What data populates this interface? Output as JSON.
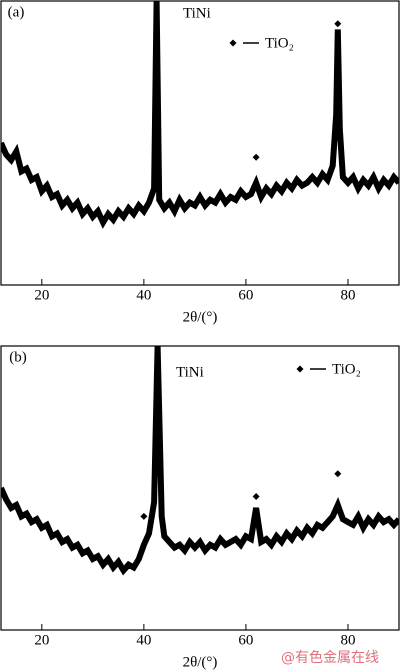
{
  "chart_data": [
    {
      "type": "line",
      "title": "(a)",
      "annotation": "TiNi",
      "legend_label": "TiO₂",
      "x_label": "2θ/(°)",
      "xlim": [
        12,
        90
      ],
      "ylim": [
        0,
        100
      ],
      "xticks": [
        20,
        40,
        60,
        80
      ],
      "series": [
        {
          "color": "#000000",
          "x": [
            12,
            13,
            14,
            15,
            16,
            17,
            18,
            19,
            20,
            21,
            22,
            23,
            24,
            25,
            26,
            27,
            28,
            29,
            30,
            31,
            32,
            33,
            34,
            35,
            36,
            37,
            38,
            39,
            40,
            41,
            42,
            42.5,
            43,
            44,
            45,
            46,
            47,
            48,
            49,
            50,
            51,
            52,
            53,
            54,
            55,
            56,
            57,
            58,
            59,
            60,
            61,
            62,
            63,
            64,
            65,
            66,
            67,
            68,
            69,
            70,
            71,
            72,
            73,
            74,
            75,
            76,
            77,
            77.7,
            78,
            78.4,
            79,
            80,
            81,
            82,
            83,
            84,
            85,
            86,
            87,
            88,
            89,
            90
          ],
          "values": [
            50,
            46,
            44,
            47,
            40,
            41,
            37,
            38,
            33,
            35,
            31,
            32,
            28,
            30,
            27,
            29,
            25,
            27,
            24,
            26,
            22,
            25,
            23,
            26,
            24,
            27,
            25,
            28,
            26,
            29,
            34,
            100,
            30,
            27,
            29,
            26,
            30,
            27,
            29,
            28,
            31,
            28,
            30,
            29,
            32,
            29,
            31,
            30,
            33,
            31,
            32,
            36,
            31,
            34,
            32,
            35,
            33,
            36,
            34,
            37,
            35,
            36,
            38,
            36,
            39,
            37,
            42,
            60,
            90,
            55,
            38,
            36,
            38,
            34,
            37,
            35,
            38,
            34,
            37,
            35,
            38,
            36
          ]
        }
      ],
      "peak_markers": [
        {
          "x": 62,
          "y": 45
        },
        {
          "x": 78,
          "y": 92
        }
      ]
    },
    {
      "type": "line",
      "title": "(b)",
      "annotation": "TiNi",
      "legend_label": "TiO₂",
      "x_label": "2θ/(°)",
      "xlim": [
        12,
        90
      ],
      "ylim": [
        0,
        100
      ],
      "xticks": [
        20,
        40,
        60,
        80
      ],
      "series": [
        {
          "color": "#000000",
          "x": [
            12,
            13,
            14,
            15,
            16,
            17,
            18,
            19,
            20,
            21,
            22,
            23,
            24,
            25,
            26,
            27,
            28,
            29,
            30,
            31,
            32,
            33,
            34,
            35,
            36,
            37,
            38,
            39,
            40,
            41,
            42,
            42.7,
            43.5,
            44,
            45,
            46,
            47,
            48,
            49,
            50,
            51,
            52,
            53,
            54,
            55,
            56,
            57,
            58,
            59,
            60,
            61,
            62,
            63,
            64,
            65,
            66,
            67,
            68,
            69,
            70,
            71,
            72,
            73,
            74,
            75,
            76,
            77,
            78,
            79,
            80,
            81,
            82,
            83,
            84,
            85,
            86,
            87,
            88,
            89,
            90
          ],
          "values": [
            50,
            46,
            43,
            44,
            40,
            41,
            38,
            39,
            36,
            37,
            33,
            34,
            31,
            32,
            29,
            30,
            27,
            28,
            25,
            26,
            23,
            25,
            22,
            24,
            21,
            23,
            22,
            25,
            30,
            34,
            45,
            100,
            40,
            33,
            31,
            29,
            30,
            28,
            31,
            29,
            31,
            28,
            30,
            29,
            32,
            30,
            31,
            32,
            30,
            33,
            32,
            43,
            31,
            32,
            30,
            33,
            31,
            34,
            32,
            35,
            33,
            36,
            34,
            37,
            36,
            38,
            40,
            44,
            39,
            38,
            37,
            40,
            36,
            39,
            37,
            40,
            38,
            39,
            37,
            39
          ]
        }
      ],
      "peak_markers": [
        {
          "x": 40,
          "y": 40
        },
        {
          "x": 62,
          "y": 47
        },
        {
          "x": 78,
          "y": 55
        }
      ]
    }
  ],
  "watermark": "@有色金属在线"
}
